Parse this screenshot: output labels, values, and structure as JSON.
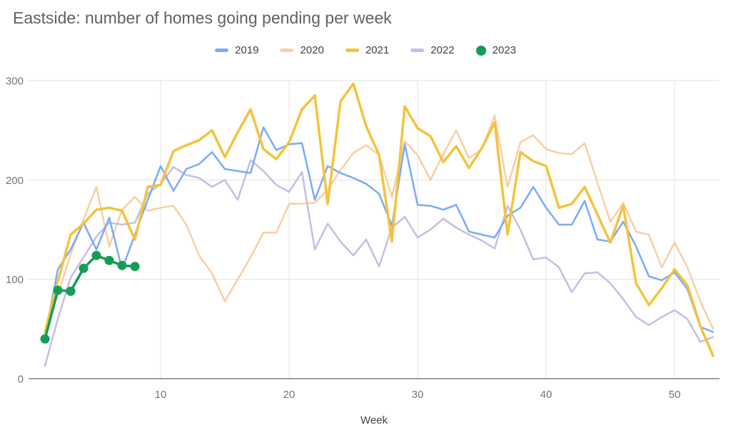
{
  "title": "Eastside: number of homes going pending per week",
  "colors": {
    "grid": "#e3e3e3",
    "axis_line": "#424242",
    "tick_label": "#757575",
    "axis_title": "#424242",
    "title_text": "#616161"
  },
  "chart_data": {
    "type": "line",
    "title": "Eastside: number of homes going pending per week",
    "xlabel": "Week",
    "ylabel": "",
    "xlim": [
      1,
      53
    ],
    "ylim": [
      0,
      300
    ],
    "x_ticks": [
      10,
      20,
      30,
      40,
      50
    ],
    "y_ticks": [
      0,
      100,
      200,
      300
    ],
    "grid": true,
    "legend_position": "top",
    "x_unit": "week number 1-53",
    "draw_order": [
      "2020",
      "2022",
      "2019",
      "2021",
      "2023"
    ],
    "series": [
      {
        "name": "2019",
        "color": "#7aabf5",
        "style": "line",
        "line_width": 2.5,
        "values": [
          42,
          110,
          130,
          157,
          130,
          162,
          110,
          145,
          180,
          214,
          189,
          211,
          216,
          228,
          211,
          209,
          207,
          253,
          230,
          236,
          237,
          180,
          214,
          207,
          202,
          196,
          186,
          154,
          236,
          175,
          174,
          170,
          175,
          148,
          145,
          142,
          164,
          172,
          193,
          172,
          155,
          155,
          179,
          140,
          138,
          158,
          133,
          103,
          99,
          107,
          90,
          52,
          47
        ]
      },
      {
        "name": "2020",
        "color": "#f8cfa5",
        "style": "line",
        "line_width": 2.5,
        "values": [
          45,
          85,
          125,
          160,
          193,
          133,
          170,
          183,
          169,
          172,
          174,
          155,
          124,
          106,
          78,
          100,
          122,
          147,
          147,
          176,
          176,
          177,
          190,
          210,
          227,
          235,
          225,
          183,
          239,
          225,
          200,
          226,
          250,
          222,
          231,
          265,
          193,
          238,
          245,
          231,
          227,
          226,
          237,
          197,
          158,
          177,
          148,
          145,
          112,
          137,
          112,
          78,
          50
        ]
      },
      {
        "name": "2021",
        "color": "#f4c33c",
        "style": "line",
        "line_width": 3.5,
        "values": [
          47,
          98,
          145,
          156,
          170,
          172,
          169,
          140,
          193,
          195,
          229,
          235,
          240,
          250,
          223,
          248,
          271,
          231,
          221,
          238,
          271,
          285,
          176,
          279,
          297,
          254,
          225,
          138,
          274,
          252,
          244,
          218,
          234,
          212,
          232,
          258,
          145,
          228,
          219,
          214,
          172,
          176,
          193,
          165,
          137,
          174,
          96,
          74,
          91,
          110,
          94,
          53,
          23
        ]
      },
      {
        "name": "2022",
        "color": "#c4bfe2",
        "style": "line",
        "line_width": 2.5,
        "values": [
          13,
          60,
          102,
          122,
          143,
          157,
          155,
          157,
          186,
          196,
          213,
          205,
          202,
          193,
          200,
          180,
          220,
          209,
          195,
          188,
          208,
          130,
          156,
          138,
          124,
          140,
          113,
          152,
          163,
          142,
          150,
          161,
          152,
          145,
          139,
          131,
          174,
          150,
          120,
          122,
          112,
          87,
          106,
          107,
          96,
          80,
          62,
          54,
          62,
          69,
          60,
          37,
          42
        ]
      },
      {
        "name": "2023",
        "color": "#129e57",
        "style": "line+points",
        "line_width": 3.5,
        "point_radius": 6.5,
        "values": [
          40,
          89,
          88,
          111,
          124,
          119,
          114,
          113
        ]
      }
    ]
  }
}
